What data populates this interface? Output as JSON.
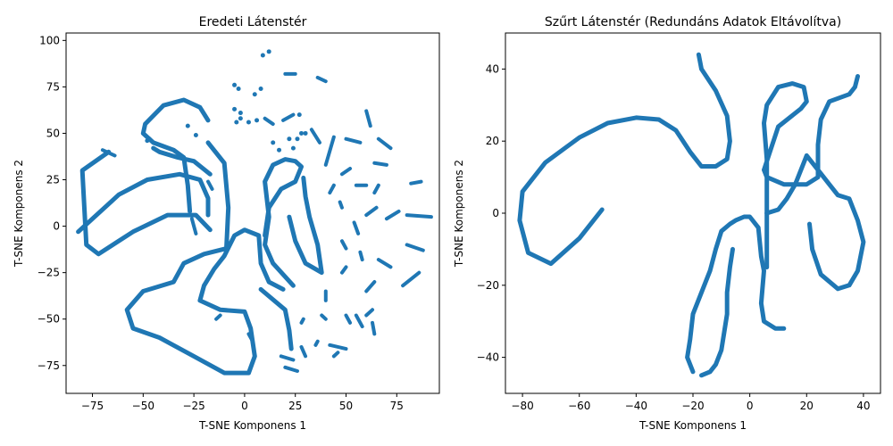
{
  "chart_data": [
    {
      "type": "scatter",
      "title": "Eredeti Látenstér",
      "xlabel": "T-SNE Komponens 1",
      "ylabel": "T-SNE Komponens 2",
      "xlim": [
        -88,
        96
      ],
      "ylim": [
        -90,
        104
      ],
      "xticks": [
        -75,
        -50,
        -25,
        0,
        25,
        50,
        75
      ],
      "yticks": [
        -75,
        -50,
        -25,
        0,
        25,
        50,
        75,
        100
      ],
      "color": "#1f77b4",
      "curves": [
        [
          [
            -67,
            40
          ],
          [
            -80,
            30
          ],
          [
            -78,
            -10
          ],
          [
            -72,
            -15
          ],
          [
            -55,
            -3
          ],
          [
            -38,
            6
          ],
          [
            -24,
            6
          ],
          [
            -17,
            -2
          ]
        ],
        [
          [
            -82,
            -3
          ],
          [
            -62,
            17
          ],
          [
            -48,
            25
          ],
          [
            -32,
            28
          ],
          [
            -22,
            25
          ],
          [
            -18,
            15
          ],
          [
            -18,
            6
          ]
        ],
        [
          [
            -17,
            28
          ],
          [
            -25,
            35
          ],
          [
            -33,
            37
          ],
          [
            -42,
            40
          ],
          [
            -45,
            42
          ]
        ],
        [
          [
            -18,
            57
          ],
          [
            -22,
            64
          ],
          [
            -30,
            68
          ],
          [
            -40,
            65
          ],
          [
            -49,
            55
          ],
          [
            -50,
            50
          ],
          [
            -45,
            45
          ],
          [
            -40,
            43
          ],
          [
            -35,
            41
          ],
          [
            -30,
            37
          ],
          [
            -28,
            22
          ],
          [
            -27,
            8
          ]
        ],
        [
          [
            -18,
            45
          ],
          [
            -10,
            34
          ],
          [
            -8,
            10
          ],
          [
            -9,
            -12
          ],
          [
            -20,
            -15
          ],
          [
            -30,
            -20
          ],
          [
            -35,
            -30
          ],
          [
            -50,
            -35
          ],
          [
            -58,
            -45
          ],
          [
            -55,
            -55
          ],
          [
            -42,
            -60
          ],
          [
            -25,
            -70
          ],
          [
            -10,
            -79
          ],
          [
            2,
            -79
          ],
          [
            5,
            -70
          ],
          [
            3,
            -55
          ],
          [
            0,
            -46
          ],
          [
            -12,
            -45
          ],
          [
            -22,
            -40
          ],
          [
            -20,
            -32
          ],
          [
            -15,
            -23
          ],
          [
            -10,
            -16
          ],
          [
            -5,
            -5
          ],
          [
            0,
            -2
          ],
          [
            7,
            -5
          ],
          [
            8,
            -20
          ],
          [
            12,
            -30
          ],
          [
            19,
            -34
          ]
        ],
        [
          [
            24,
            -32
          ],
          [
            14,
            -20
          ],
          [
            10,
            -10
          ],
          [
            12,
            5
          ],
          [
            10,
            24
          ],
          [
            14,
            33
          ],
          [
            20,
            36
          ],
          [
            25,
            35
          ],
          [
            28,
            32
          ],
          [
            25,
            24
          ],
          [
            18,
            20
          ],
          [
            12,
            10
          ],
          [
            10,
            -5
          ]
        ],
        [
          [
            29,
            26
          ],
          [
            30,
            16
          ],
          [
            32,
            5
          ],
          [
            36,
            -10
          ],
          [
            38,
            -25
          ],
          [
            30,
            -20
          ],
          [
            25,
            -8
          ],
          [
            22,
            5
          ]
        ],
        [
          [
            8,
            -34
          ],
          [
            20,
            -45
          ],
          [
            22,
            -56
          ],
          [
            23,
            -66
          ]
        ]
      ],
      "segments": [
        [
          [
            -70,
            41
          ],
          [
            -64,
            38
          ]
        ],
        [
          -48,
          46
        ],
        [
          -47,
          47
        ],
        [
          -28,
          54
        ],
        [
          -24,
          49
        ],
        [
          -5,
          76
        ],
        [
          -3,
          74
        ],
        [
          -5,
          63
        ],
        [
          -2,
          61
        ],
        [
          -4,
          56
        ],
        [
          -2,
          58
        ],
        [
          2,
          56
        ],
        [
          6,
          57
        ],
        [
          5,
          71
        ],
        [
          8,
          74
        ],
        [
          9,
          92
        ],
        [
          12,
          94
        ],
        [
          [
            10,
            58
          ],
          [
            14,
            55
          ]
        ],
        [
          [
            19,
            57
          ],
          [
            24,
            60
          ]
        ],
        [
          27,
          60
        ],
        [
          [
            20,
            82
          ],
          [
            25,
            82
          ]
        ],
        [
          [
            36,
            80
          ],
          [
            40,
            78
          ]
        ],
        [
          [
            33,
            52
          ],
          [
            37,
            45
          ]
        ],
        [
          14,
          45
        ],
        [
          17,
          41
        ],
        [
          22,
          47
        ],
        [
          24,
          42
        ],
        [
          26,
          47
        ],
        [
          28,
          50
        ],
        [
          30,
          50
        ],
        [
          [
            44,
            48
          ],
          [
            40,
            33
          ]
        ],
        [
          [
            50,
            47
          ],
          [
            57,
            45
          ]
        ],
        [
          [
            60,
            62
          ],
          [
            62,
            54
          ]
        ],
        [
          [
            66,
            47
          ],
          [
            72,
            42
          ]
        ],
        [
          [
            48,
            28
          ],
          [
            52,
            31
          ]
        ],
        [
          [
            55,
            22
          ],
          [
            60,
            22
          ]
        ],
        [
          [
            64,
            34
          ],
          [
            70,
            33
          ]
        ],
        [
          [
            66,
            22
          ],
          [
            64,
            18
          ]
        ],
        [
          [
            82,
            23
          ],
          [
            87,
            24
          ]
        ],
        [
          [
            80,
            6
          ],
          [
            92,
            5
          ]
        ],
        [
          [
            76,
            8
          ],
          [
            70,
            4
          ]
        ],
        [
          [
            60,
            6
          ],
          [
            65,
            10
          ]
        ],
        [
          [
            54,
            2
          ],
          [
            56,
            -4
          ]
        ],
        [
          [
            47,
            13
          ],
          [
            48,
            10
          ]
        ],
        [
          [
            42,
            18
          ],
          [
            44,
            22
          ]
        ],
        [
          [
            50,
            -12
          ],
          [
            48,
            -8
          ]
        ],
        [
          [
            48,
            -25
          ],
          [
            50,
            -22
          ]
        ],
        [
          [
            58,
            -18
          ],
          [
            57,
            -14
          ]
        ],
        [
          [
            60,
            -35
          ],
          [
            64,
            -30
          ]
        ],
        [
          [
            66,
            -18
          ],
          [
            72,
            -22
          ]
        ],
        [
          [
            78,
            -32
          ],
          [
            86,
            -25
          ]
        ],
        [
          [
            80,
            -10
          ],
          [
            88,
            -13
          ]
        ],
        [
          [
            60,
            -48
          ],
          [
            63,
            -45
          ]
        ],
        [
          [
            63,
            -52
          ],
          [
            64,
            -58
          ]
        ],
        [
          [
            55,
            -48
          ],
          [
            58,
            -54
          ]
        ],
        [
          [
            50,
            -48
          ],
          [
            52,
            -52
          ]
        ],
        [
          [
            38,
            -48
          ],
          [
            40,
            -50
          ]
        ],
        [
          [
            40,
            -35
          ],
          [
            40,
            -40
          ]
        ],
        [
          [
            42,
            -64
          ],
          [
            50,
            -66
          ]
        ],
        [
          [
            44,
            -70
          ],
          [
            46,
            -68
          ]
        ],
        [
          [
            28,
            -65
          ],
          [
            30,
            -70
          ]
        ],
        [
          [
            20,
            -76
          ],
          [
            26,
            -78
          ]
        ],
        [
          [
            18,
            -70
          ],
          [
            24,
            -72
          ]
        ],
        [
          [
            36,
            -62
          ],
          [
            35,
            -64
          ]
        ],
        [
          [
            28,
            -52
          ],
          [
            29,
            -50
          ]
        ],
        [
          [
            2,
            -58
          ],
          [
            4,
            -62
          ]
        ],
        [
          [
            -14,
            -50
          ],
          [
            -12,
            -48
          ]
        ],
        [
          [
            -24,
            -4
          ],
          [
            -26,
            4
          ]
        ],
        [
          [
            -18,
            24
          ],
          [
            -16,
            20
          ]
        ]
      ]
    },
    {
      "type": "scatter",
      "title": "Szűrt Látenstér (Redundáns Adatok Eltávolítva)",
      "xlabel": "T-SNE Komponens 1",
      "ylabel": "T-SNE Komponens 2",
      "xlim": [
        -86,
        46
      ],
      "ylim": [
        -50,
        50
      ],
      "xticks": [
        -80,
        -60,
        -40,
        -20,
        0,
        20,
        40
      ],
      "yticks": [
        -40,
        -20,
        0,
        20,
        40
      ],
      "color": "#1f77b4",
      "curves": [
        [
          [
            -52,
            1
          ],
          [
            -60,
            -7
          ],
          [
            -70,
            -14
          ],
          [
            -78,
            -11
          ],
          [
            -81,
            -2
          ],
          [
            -80,
            6
          ],
          [
            -72,
            14
          ],
          [
            -60,
            21
          ],
          [
            -50,
            25
          ],
          [
            -40,
            26.5
          ],
          [
            -32,
            26
          ],
          [
            -26,
            23
          ],
          [
            -21,
            17
          ],
          [
            -17,
            13
          ],
          [
            -12,
            13
          ],
          [
            -8,
            15
          ],
          [
            -7,
            20
          ],
          [
            -8,
            27
          ],
          [
            -12,
            34
          ],
          [
            -17,
            40
          ],
          [
            -18,
            44
          ]
        ],
        [
          [
            6,
            -15
          ],
          [
            6,
            0
          ],
          [
            6,
            15
          ],
          [
            5,
            25
          ],
          [
            6,
            30
          ],
          [
            10,
            35
          ],
          [
            15,
            36
          ],
          [
            19,
            35
          ],
          [
            20,
            31
          ],
          [
            18,
            29
          ],
          [
            10,
            24
          ],
          [
            5,
            12
          ],
          [
            6,
            10
          ],
          [
            12,
            8
          ],
          [
            20,
            8
          ],
          [
            24,
            10
          ],
          [
            24,
            19
          ],
          [
            25,
            26
          ],
          [
            28,
            31
          ],
          [
            35,
            33
          ],
          [
            37,
            35
          ],
          [
            38,
            38
          ]
        ],
        [
          [
            21,
            -3
          ],
          [
            22,
            -10
          ],
          [
            25,
            -17
          ],
          [
            31,
            -21
          ],
          [
            35,
            -20
          ],
          [
            38,
            -16
          ],
          [
            40,
            -8
          ],
          [
            38,
            -2
          ],
          [
            35,
            4
          ],
          [
            31,
            5
          ],
          [
            28,
            8
          ],
          [
            25,
            11
          ],
          [
            20,
            16
          ],
          [
            16,
            8
          ],
          [
            13,
            4
          ],
          [
            10,
            1
          ],
          [
            6,
            0
          ]
        ],
        [
          [
            -20,
            -44
          ],
          [
            -22,
            -40
          ],
          [
            -21,
            -35
          ],
          [
            -20,
            -28
          ],
          [
            -17,
            -22
          ],
          [
            -14,
            -16
          ],
          [
            -12,
            -10
          ],
          [
            -10,
            -5
          ],
          [
            -7,
            -3
          ],
          [
            -5,
            -2
          ],
          [
            -2,
            -1
          ],
          [
            0,
            -1
          ],
          [
            3,
            -4
          ],
          [
            4,
            -12
          ],
          [
            5,
            -16
          ],
          [
            4,
            -25
          ],
          [
            5,
            -30
          ],
          [
            9,
            -32
          ],
          [
            12,
            -32
          ]
        ],
        [
          [
            -17,
            -45
          ],
          [
            -14,
            -44
          ],
          [
            -12,
            -42
          ],
          [
            -10,
            -38
          ],
          [
            -9,
            -33
          ],
          [
            -8,
            -28
          ],
          [
            -8,
            -22
          ],
          [
            -7,
            -15
          ],
          [
            -6,
            -10
          ]
        ]
      ],
      "segments": []
    }
  ]
}
